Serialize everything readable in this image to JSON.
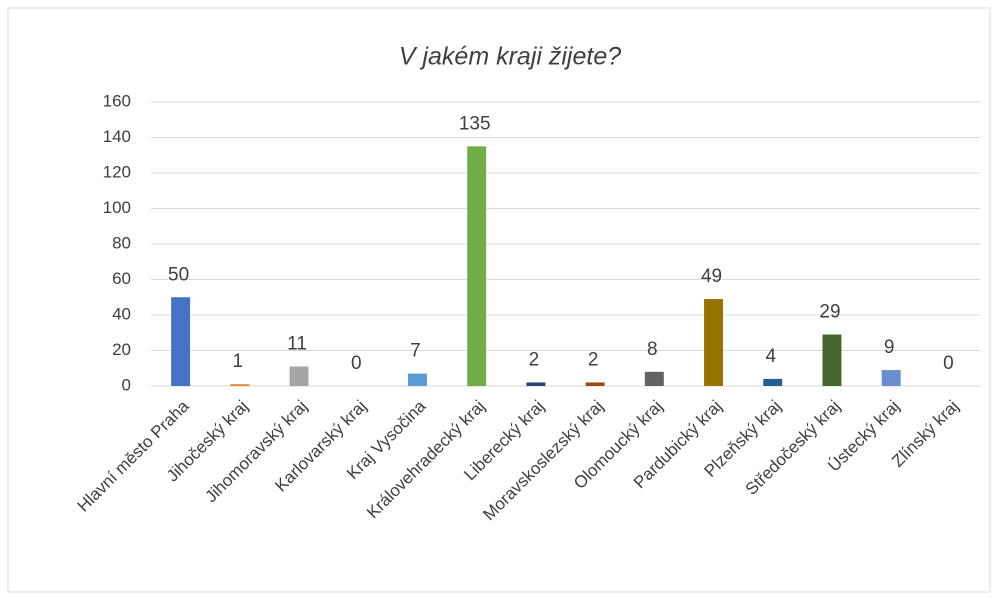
{
  "chart_data": {
    "type": "bar",
    "title": "V jakém kraji žijete?",
    "categories": [
      "Hlavní město Praha",
      "Jihočeský kraj",
      "Jihomoravský kraj",
      "Karlovarský kraj",
      "Kraj Vysočina",
      "Královehradecký kraj",
      "Liberecký kraj",
      "Moravskoslezský kraj",
      "Olomoucký kraj",
      "Pardubický kraj",
      "Plzeňský kraj",
      "Středočeský kraj",
      "Ústecký kraj",
      "Zlínský kraj"
    ],
    "values": [
      50,
      1,
      11,
      0,
      7,
      135,
      2,
      2,
      8,
      49,
      4,
      29,
      9,
      0
    ],
    "colors": [
      "#4472c4",
      "#ed7d31",
      "#a5a5a5",
      "#ffc000",
      "#5b9bd5",
      "#70ad47",
      "#264478",
      "#9e480e",
      "#636363",
      "#997300",
      "#255e91",
      "#43682b",
      "#698ed0",
      "#f1975a"
    ],
    "ylim": [
      0,
      160
    ],
    "yticks": [
      0,
      20,
      40,
      60,
      80,
      100,
      120,
      140,
      160
    ],
    "grid": true
  }
}
